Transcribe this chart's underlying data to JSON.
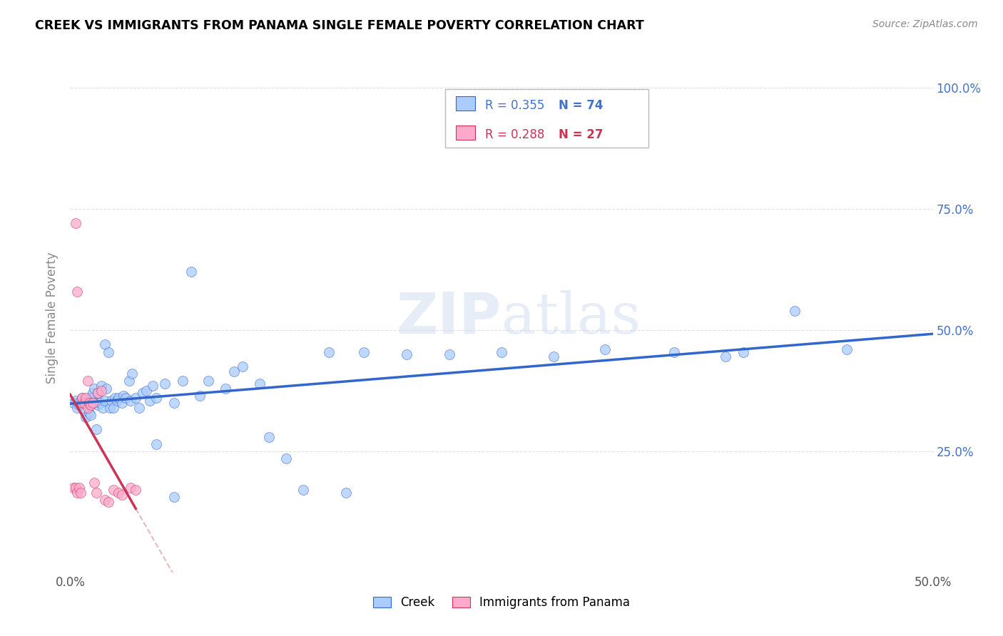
{
  "title": "CREEK VS IMMIGRANTS FROM PANAMA SINGLE FEMALE POVERTY CORRELATION CHART",
  "source": "Source: ZipAtlas.com",
  "ylabel": "Single Female Poverty",
  "xlim": [
    0.0,
    0.5
  ],
  "ylim": [
    0.0,
    1.05
  ],
  "ytick_labels_right": [
    "25.0%",
    "50.0%",
    "75.0%",
    "100.0%"
  ],
  "ytick_positions_right": [
    0.25,
    0.5,
    0.75,
    1.0
  ],
  "watermark": "ZIPatlas",
  "legend_r1": "R = 0.355",
  "legend_n1": "N = 74",
  "legend_r2": "R = 0.288",
  "legend_n2": "N = 27",
  "creek_color": "#aaccff",
  "panama_color": "#ffaacc",
  "trendline_creek_color": "#3366cc",
  "trendline_panama_color": "#cc3355",
  "trendline_panama_dashed_color": "#ddaaaa",
  "legend_creek_label": "Creek",
  "legend_panama_label": "Immigrants from Panama",
  "creek_x": [
    0.002,
    0.003,
    0.004,
    0.005,
    0.006,
    0.007,
    0.008,
    0.009,
    0.01,
    0.01,
    0.011,
    0.011,
    0.012,
    0.013,
    0.013,
    0.014,
    0.014,
    0.015,
    0.016,
    0.016,
    0.017,
    0.018,
    0.019,
    0.02,
    0.02,
    0.021,
    0.022,
    0.023,
    0.024,
    0.025,
    0.026,
    0.027,
    0.028,
    0.03,
    0.031,
    0.032,
    0.034,
    0.035,
    0.036,
    0.038,
    0.04,
    0.042,
    0.044,
    0.046,
    0.048,
    0.05,
    0.055,
    0.06,
    0.065,
    0.07,
    0.075,
    0.08,
    0.09,
    0.095,
    0.1,
    0.11,
    0.115,
    0.125,
    0.135,
    0.15,
    0.17,
    0.195,
    0.22,
    0.25,
    0.28,
    0.31,
    0.35,
    0.39,
    0.42,
    0.45,
    0.05,
    0.06,
    0.16,
    0.38
  ],
  "creek_y": [
    0.35,
    0.355,
    0.34,
    0.345,
    0.355,
    0.36,
    0.335,
    0.32,
    0.345,
    0.355,
    0.33,
    0.36,
    0.325,
    0.36,
    0.37,
    0.35,
    0.38,
    0.295,
    0.37,
    0.345,
    0.35,
    0.385,
    0.34,
    0.355,
    0.47,
    0.38,
    0.455,
    0.34,
    0.355,
    0.34,
    0.36,
    0.355,
    0.36,
    0.35,
    0.365,
    0.36,
    0.395,
    0.355,
    0.41,
    0.36,
    0.34,
    0.37,
    0.375,
    0.355,
    0.385,
    0.36,
    0.39,
    0.35,
    0.395,
    0.62,
    0.365,
    0.395,
    0.38,
    0.415,
    0.425,
    0.39,
    0.28,
    0.235,
    0.17,
    0.455,
    0.455,
    0.45,
    0.45,
    0.455,
    0.445,
    0.46,
    0.455,
    0.455,
    0.54,
    0.46,
    0.265,
    0.155,
    0.165,
    0.445
  ],
  "panama_x": [
    0.002,
    0.003,
    0.004,
    0.005,
    0.006,
    0.007,
    0.007,
    0.008,
    0.009,
    0.01,
    0.01,
    0.011,
    0.012,
    0.013,
    0.014,
    0.015,
    0.016,
    0.018,
    0.02,
    0.022,
    0.025,
    0.028,
    0.03,
    0.035,
    0.038,
    0.003,
    0.004
  ],
  "panama_y": [
    0.175,
    0.175,
    0.165,
    0.175,
    0.165,
    0.35,
    0.36,
    0.35,
    0.36,
    0.34,
    0.395,
    0.35,
    0.345,
    0.35,
    0.185,
    0.165,
    0.37,
    0.375,
    0.15,
    0.145,
    0.17,
    0.165,
    0.16,
    0.175,
    0.17,
    0.72,
    0.58
  ]
}
